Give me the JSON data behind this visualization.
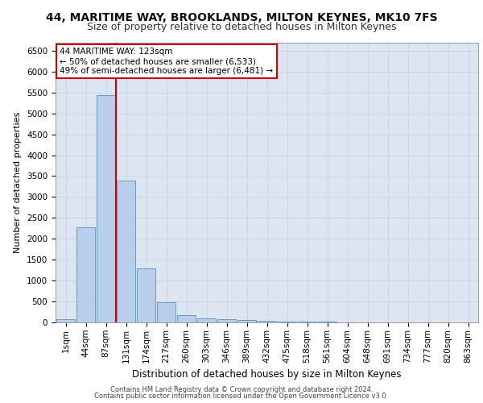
{
  "title1": "44, MARITIME WAY, BROOKLANDS, MILTON KEYNES, MK10 7FS",
  "title2": "Size of property relative to detached houses in Milton Keynes",
  "xlabel": "Distribution of detached houses by size in Milton Keynes",
  "ylabel": "Number of detached properties",
  "footer1": "Contains HM Land Registry data © Crown copyright and database right 2024.",
  "footer2": "Contains public sector information licensed under the Open Government Licence v3.0.",
  "categories": [
    "1sqm",
    "44sqm",
    "87sqm",
    "131sqm",
    "174sqm",
    "217sqm",
    "260sqm",
    "303sqm",
    "346sqm",
    "389sqm",
    "432sqm",
    "475sqm",
    "518sqm",
    "561sqm",
    "604sqm",
    "648sqm",
    "691sqm",
    "734sqm",
    "777sqm",
    "820sqm",
    "863sqm"
  ],
  "values": [
    70,
    2280,
    5440,
    3400,
    1300,
    480,
    165,
    95,
    75,
    55,
    30,
    20,
    15,
    10,
    8,
    5,
    4,
    3,
    2,
    2,
    1
  ],
  "bar_color": "#b8ceea",
  "bar_edge_color": "#5a8fc0",
  "vline_color": "#cc0000",
  "vline_x_index": 2.5,
  "annotation_text": "44 MARITIME WAY: 123sqm\n← 50% of detached houses are smaller (6,533)\n49% of semi-detached houses are larger (6,481) →",
  "annotation_box_facecolor": "#ffffff",
  "annotation_box_edgecolor": "#cc0000",
  "ylim": [
    0,
    6700
  ],
  "yticks": [
    0,
    500,
    1000,
    1500,
    2000,
    2500,
    3000,
    3500,
    4000,
    4500,
    5000,
    5500,
    6000,
    6500
  ],
  "grid_color": "#c8d4e8",
  "background_color": "#dde5f0",
  "title1_fontsize": 10,
  "title2_fontsize": 9,
  "xlabel_fontsize": 8.5,
  "ylabel_fontsize": 8,
  "tick_fontsize": 7.5,
  "annotation_fontsize": 7.5,
  "footer_fontsize": 6
}
